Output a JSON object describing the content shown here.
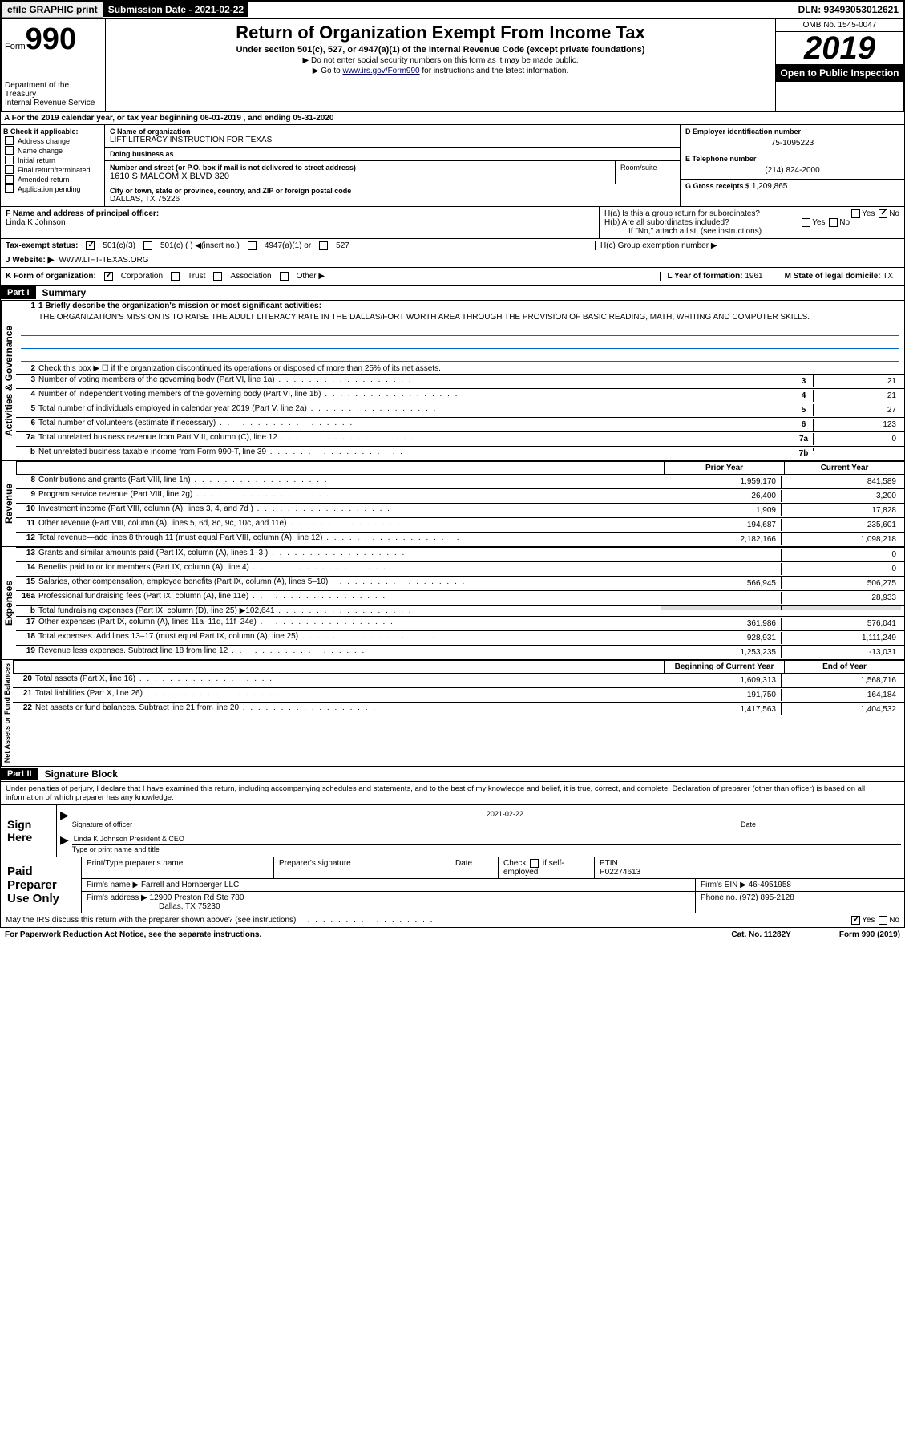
{
  "top": {
    "efile": "efile GRAPHIC print",
    "submission": "Submission Date - 2021-02-22",
    "dln": "DLN: 93493053012621"
  },
  "header": {
    "form_prefix": "Form",
    "form_num": "990",
    "dept": "Department of the Treasury",
    "irs": "Internal Revenue Service",
    "title": "Return of Organization Exempt From Income Tax",
    "subtitle": "Under section 501(c), 527, or 4947(a)(1) of the Internal Revenue Code (except private foundations)",
    "instr1": "▶ Do not enter social security numbers on this form as it may be made public.",
    "instr2_pre": "▶ Go to ",
    "instr2_link": "www.irs.gov/Form990",
    "instr2_post": " for instructions and the latest information.",
    "omb": "OMB No. 1545-0047",
    "year": "2019",
    "open": "Open to Public Inspection"
  },
  "period": "A For the 2019 calendar year, or tax year beginning 06-01-2019    , and ending 05-31-2020",
  "checkboxes": {
    "header": "B Check if applicable:",
    "items": [
      "Address change",
      "Name change",
      "Initial return",
      "Final return/terminated",
      "Amended return",
      "Application pending"
    ]
  },
  "org": {
    "name_label": "C Name of organization",
    "name": "LIFT LITERACY INSTRUCTION FOR TEXAS",
    "dba_label": "Doing business as",
    "dba": "",
    "addr_label": "Number and street (or P.O. box if mail is not delivered to street address)",
    "addr": "1610 S MALCOM X BLVD 320",
    "room_label": "Room/suite",
    "city_label": "City or town, state or province, country, and ZIP or foreign postal code",
    "city": "DALLAS, TX  75226"
  },
  "right_info": {
    "ein_label": "D Employer identification number",
    "ein": "75-1095223",
    "phone_label": "E Telephone number",
    "phone": "(214) 824-2000",
    "gross_label": "G Gross receipts $",
    "gross": "1,209,865"
  },
  "fgh": {
    "f_label": "F  Name and address of principal officer:",
    "f_name": "Linda K Johnson",
    "ha": "H(a)  Is this a group return for subordinates?",
    "hb": "H(b)  Are all subordinates included?",
    "hb_note": "If \"No,\" attach a list. (see instructions)",
    "hc": "H(c)  Group exemption number ▶",
    "yes": "Yes",
    "no": "No"
  },
  "tax_status": {
    "label": "Tax-exempt status:",
    "c3": "501(c)(3)",
    "c_other": "501(c) (  ) ◀(insert no.)",
    "a1": "4947(a)(1) or",
    "s527": "527"
  },
  "website": {
    "label": "J   Website: ▶",
    "value": "WWW.LIFT-TEXAS.ORG"
  },
  "k_row": {
    "label": "K Form of organization:",
    "corp": "Corporation",
    "trust": "Trust",
    "assoc": "Association",
    "other": "Other ▶",
    "l_label": "L Year of formation:",
    "l_val": "1961",
    "m_label": "M State of legal domicile:",
    "m_val": "TX"
  },
  "part1": {
    "header": "Part I",
    "title": "Summary",
    "mission_label": "1  Briefly describe the organization's mission or most significant activities:",
    "mission": "THE ORGANIZATION'S MISSION IS TO RAISE THE ADULT LITERACY RATE IN THE DALLAS/FORT WORTH AREA THROUGH THE PROVISION OF BASIC READING, MATH, WRITING AND COMPUTER SKILLS.",
    "line2": "Check this box ▶ ☐  if the organization discontinued its operations or disposed of more than 25% of its net assets."
  },
  "gov_lines": [
    {
      "n": "3",
      "t": "Number of voting members of the governing body (Part VI, line 1a)",
      "b": "3",
      "v": "21"
    },
    {
      "n": "4",
      "t": "Number of independent voting members of the governing body (Part VI, line 1b)",
      "b": "4",
      "v": "21"
    },
    {
      "n": "5",
      "t": "Total number of individuals employed in calendar year 2019 (Part V, line 2a)",
      "b": "5",
      "v": "27"
    },
    {
      "n": "6",
      "t": "Total number of volunteers (estimate if necessary)",
      "b": "6",
      "v": "123"
    },
    {
      "n": "7a",
      "t": "Total unrelated business revenue from Part VIII, column (C), line 12",
      "b": "7a",
      "v": "0"
    },
    {
      "n": "b",
      "t": "Net unrelated business taxable income from Form 990-T, line 39",
      "b": "7b",
      "v": ""
    }
  ],
  "rev_header": {
    "pv": "Prior Year",
    "cy": "Current Year"
  },
  "rev_lines": [
    {
      "n": "8",
      "t": "Contributions and grants (Part VIII, line 1h)",
      "pv": "1,959,170",
      "cy": "841,589"
    },
    {
      "n": "9",
      "t": "Program service revenue (Part VIII, line 2g)",
      "pv": "26,400",
      "cy": "3,200"
    },
    {
      "n": "10",
      "t": "Investment income (Part VIII, column (A), lines 3, 4, and 7d )",
      "pv": "1,909",
      "cy": "17,828"
    },
    {
      "n": "11",
      "t": "Other revenue (Part VIII, column (A), lines 5, 6d, 8c, 9c, 10c, and 11e)",
      "pv": "194,687",
      "cy": "235,601"
    },
    {
      "n": "12",
      "t": "Total revenue—add lines 8 through 11 (must equal Part VIII, column (A), line 12)",
      "pv": "2,182,166",
      "cy": "1,098,218"
    }
  ],
  "exp_lines": [
    {
      "n": "13",
      "t": "Grants and similar amounts paid (Part IX, column (A), lines 1–3 )",
      "pv": "",
      "cy": "0"
    },
    {
      "n": "14",
      "t": "Benefits paid to or for members (Part IX, column (A), line 4)",
      "pv": "",
      "cy": "0"
    },
    {
      "n": "15",
      "t": "Salaries, other compensation, employee benefits (Part IX, column (A), lines 5–10)",
      "pv": "566,945",
      "cy": "506,275"
    },
    {
      "n": "16a",
      "t": "Professional fundraising fees (Part IX, column (A), line 11e)",
      "pv": "",
      "cy": "28,933"
    },
    {
      "n": "b",
      "t": "Total fundraising expenses (Part IX, column (D), line 25) ▶102,641",
      "pv": "GRAY",
      "cy": "GRAY"
    },
    {
      "n": "17",
      "t": "Other expenses (Part IX, column (A), lines 11a–11d, 11f–24e)",
      "pv": "361,986",
      "cy": "576,041"
    },
    {
      "n": "18",
      "t": "Total expenses. Add lines 13–17 (must equal Part IX, column (A), line 25)",
      "pv": "928,931",
      "cy": "1,111,249"
    },
    {
      "n": "19",
      "t": "Revenue less expenses. Subtract line 18 from line 12",
      "pv": "1,253,235",
      "cy": "-13,031"
    }
  ],
  "na_header": {
    "pv": "Beginning of Current Year",
    "cy": "End of Year"
  },
  "na_lines": [
    {
      "n": "20",
      "t": "Total assets (Part X, line 16)",
      "pv": "1,609,313",
      "cy": "1,568,716"
    },
    {
      "n": "21",
      "t": "Total liabilities (Part X, line 26)",
      "pv": "191,750",
      "cy": "164,184"
    },
    {
      "n": "22",
      "t": "Net assets or fund balances. Subtract line 21 from line 20",
      "pv": "1,417,563",
      "cy": "1,404,532"
    }
  ],
  "part2": {
    "header": "Part II",
    "title": "Signature Block",
    "penalty": "Under penalties of perjury, I declare that I have examined this return, including accompanying schedules and statements, and to the best of my knowledge and belief, it is true, correct, and complete. Declaration of preparer (other than officer) is based on all information of which preparer has any knowledge."
  },
  "sign": {
    "label": "Sign Here",
    "sig_label": "Signature of officer",
    "date_label": "Date",
    "date": "2021-02-22",
    "name": "Linda K Johnson  President & CEO",
    "name_label": "Type or print name and title"
  },
  "preparer": {
    "label": "Paid Preparer Use Only",
    "h1": "Print/Type preparer's name",
    "h2": "Preparer's signature",
    "h3": "Date",
    "h4_pre": "Check",
    "h4_post": "if self-employed",
    "h5": "PTIN",
    "ptin": "P02274613",
    "firm_label": "Firm's name     ▶",
    "firm": "Farrell and Hornberger LLC",
    "ein_label": "Firm's EIN ▶",
    "ein": "46-4951958",
    "addr_label": "Firm's address ▶",
    "addr1": "12900 Preston Rd Ste 780",
    "addr2": "Dallas, TX  75230",
    "phone_label": "Phone no.",
    "phone": "(972) 895-2128"
  },
  "discuss": {
    "text": "May the IRS discuss this return with the preparer shown above? (see instructions)",
    "yes": "Yes",
    "no": "No"
  },
  "footer": {
    "left": "For Paperwork Reduction Act Notice, see the separate instructions.",
    "mid": "Cat. No. 11282Y",
    "right": "Form 990 (2019)"
  },
  "side_labels": {
    "gov": "Activities & Governance",
    "rev": "Revenue",
    "exp": "Expenses",
    "na": "Net Assets or Fund Balances"
  }
}
